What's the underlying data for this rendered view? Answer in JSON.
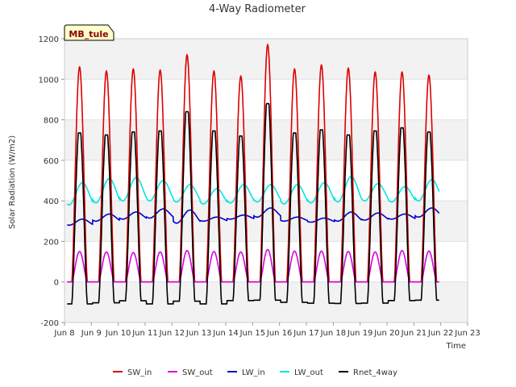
{
  "chart_data": {
    "type": "line",
    "title": "4-Way Radiometer",
    "xlabel": "Time",
    "ylabel": "Solar Radiation (W/m2)",
    "ylim": [
      -200,
      1200
    ],
    "xlim": [
      8,
      23
    ],
    "yticks": [
      -200,
      0,
      200,
      400,
      600,
      800,
      1000,
      1200
    ],
    "xtick_labels": [
      "Jun 8",
      "Jun 9",
      "Jun 10",
      "Jun 11",
      "Jun 12",
      "Jun 13",
      "Jun 14",
      "Jun 15",
      "Jun 16",
      "Jun 17",
      "Jun 18",
      "Jun 19",
      "Jun 20",
      "Jun 21",
      "Jun 22",
      "Jun 23"
    ],
    "grid": "horizontal bands",
    "legend_position": "bottom",
    "station_label": "MB_tule",
    "days": [
      8,
      9,
      10,
      11,
      12,
      13,
      14,
      15,
      16,
      17,
      18,
      19,
      20,
      21
    ],
    "series": [
      {
        "name": "SW_in",
        "color": "#dd0000",
        "daily_peak": [
          1060,
          1040,
          1050,
          1045,
          1120,
          1040,
          1015,
          1170,
          1050,
          1070,
          1055,
          1035,
          1035,
          1020
        ],
        "night": 0
      },
      {
        "name": "SW_out",
        "color": "#dd00dd",
        "daily_peak": [
          150,
          148,
          145,
          148,
          155,
          150,
          148,
          160,
          152,
          152,
          150,
          148,
          155,
          152
        ],
        "night": 0
      },
      {
        "name": "LW_in",
        "color": "#0000cc",
        "daily_min": [
          280,
          300,
          310,
          315,
          290,
          300,
          310,
          320,
          300,
          295,
          300,
          305,
          310,
          320
        ],
        "daily_max": [
          310,
          335,
          345,
          360,
          355,
          320,
          330,
          365,
          320,
          315,
          345,
          340,
          335,
          365
        ]
      },
      {
        "name": "LW_out",
        "color": "#00e5e5",
        "daily_min": [
          380,
          390,
          400,
          400,
          395,
          385,
          390,
          395,
          385,
          390,
          395,
          400,
          395,
          400
        ],
        "daily_max": [
          490,
          510,
          515,
          500,
          480,
          460,
          480,
          480,
          480,
          490,
          520,
          485,
          470,
          505
        ]
      },
      {
        "name": "Rnet_4way",
        "color": "#000000",
        "daily_peak": [
          735,
          725,
          740,
          745,
          840,
          745,
          720,
          880,
          735,
          750,
          725,
          745,
          760,
          740
        ],
        "daily_night": [
          -108,
          -103,
          -93,
          -108,
          -95,
          -108,
          -92,
          -90,
          -100,
          -105,
          -106,
          -104,
          -92,
          -90
        ]
      }
    ]
  }
}
